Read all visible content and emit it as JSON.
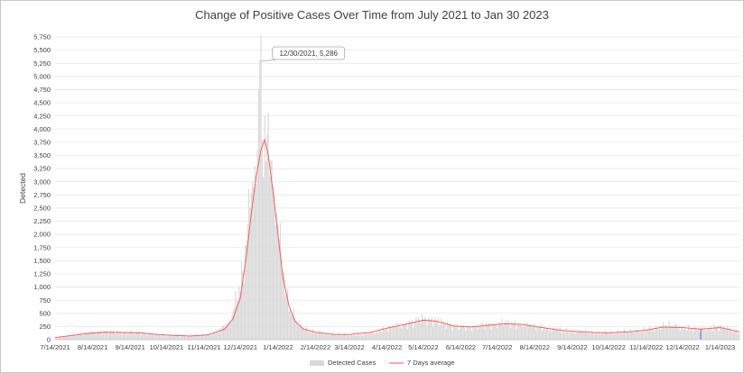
{
  "chart_data": {
    "type": "bar",
    "title": "Change of Positive Cases Over Time from July 2021 to Jan 30 2023",
    "xlabel": "",
    "ylabel": "Detected",
    "ylim": [
      0,
      5750
    ],
    "y_ticks": [
      0,
      250,
      500,
      750,
      1000,
      1250,
      1500,
      1750,
      2000,
      2250,
      2500,
      2750,
      3000,
      3250,
      3500,
      3750,
      4000,
      4250,
      4500,
      4750,
      5000,
      5250,
      5500,
      5750
    ],
    "y_tick_labels": [
      "0",
      "250",
      "500",
      "750",
      "1,000",
      "1,250",
      "1,500",
      "1,750",
      "2,000",
      "2,250",
      "2,500",
      "2,750",
      "3,000",
      "3,250",
      "3,500",
      "3,750",
      "4,000",
      "4,250",
      "4,500",
      "4,750",
      "5,000",
      "5,250",
      "5,500",
      "5,750"
    ],
    "x_range": [
      "2021-07-14",
      "2023-01-30"
    ],
    "x_ticks": [
      "7/14/2021",
      "8/14/2021",
      "9/14/2021",
      "10/14/2021",
      "11/14/2021",
      "12/14/2021",
      "1/14/2022",
      "2/14/2022",
      "3/14/2022",
      "4/14/2022",
      "5/14/2022",
      "6/14/2022",
      "7/14/2022",
      "8/14/2022",
      "9/14/2022",
      "10/14/2022",
      "11/14/2022",
      "12/14/2022",
      "1/14/2023"
    ],
    "grid": "horizontal",
    "legend_position": "bottom",
    "annotation": {
      "text": "12/30/2021, 5,286",
      "x": "2021-12-30",
      "y": 5286
    },
    "series": [
      {
        "name": "Detected Cases",
        "kind": "bar",
        "color": "#d9d9d9",
        "highlight_color": "#4472c4",
        "highlight_date": "2022-12-29",
        "points": [
          [
            "2021-07-14",
            30
          ],
          [
            "2021-07-21",
            55
          ],
          [
            "2021-07-28",
            85
          ],
          [
            "2021-08-04",
            110
          ],
          [
            "2021-08-11",
            130
          ],
          [
            "2021-08-18",
            150
          ],
          [
            "2021-08-25",
            155
          ],
          [
            "2021-09-01",
            150
          ],
          [
            "2021-09-08",
            140
          ],
          [
            "2021-09-15",
            150
          ],
          [
            "2021-09-22",
            135
          ],
          [
            "2021-09-29",
            120
          ],
          [
            "2021-10-06",
            100
          ],
          [
            "2021-10-13",
            90
          ],
          [
            "2021-10-20",
            80
          ],
          [
            "2021-10-27",
            75
          ],
          [
            "2021-11-03",
            70
          ],
          [
            "2021-11-10",
            80
          ],
          [
            "2021-11-17",
            100
          ],
          [
            "2021-11-24",
            150
          ],
          [
            "2021-12-01",
            250
          ],
          [
            "2021-12-05",
            350
          ],
          [
            "2021-12-09",
            600
          ],
          [
            "2021-12-13",
            1000
          ],
          [
            "2021-12-16",
            1300
          ],
          [
            "2021-12-19",
            1800
          ],
          [
            "2021-12-22",
            2500
          ],
          [
            "2021-12-24",
            3000
          ],
          [
            "2021-12-26",
            3300
          ],
          [
            "2021-12-28",
            3600
          ],
          [
            "2021-12-30",
            5286
          ],
          [
            "2022-01-01",
            3800
          ],
          [
            "2022-01-03",
            4250
          ],
          [
            "2022-01-05",
            3900
          ],
          [
            "2022-01-07",
            3100
          ],
          [
            "2022-01-09",
            3400
          ],
          [
            "2022-01-11",
            2800
          ],
          [
            "2022-01-13",
            2400
          ],
          [
            "2022-01-15",
            1900
          ],
          [
            "2022-01-18",
            1300
          ],
          [
            "2022-01-21",
            900
          ],
          [
            "2022-01-24",
            600
          ],
          [
            "2022-01-28",
            400
          ],
          [
            "2022-02-02",
            250
          ],
          [
            "2022-02-09",
            170
          ],
          [
            "2022-02-16",
            130
          ],
          [
            "2022-02-23",
            110
          ],
          [
            "2022-03-02",
            100
          ],
          [
            "2022-03-09",
            90
          ],
          [
            "2022-03-16",
            95
          ],
          [
            "2022-03-23",
            100
          ],
          [
            "2022-03-30",
            120
          ],
          [
            "2022-04-06",
            150
          ],
          [
            "2022-04-13",
            200
          ],
          [
            "2022-04-20",
            250
          ],
          [
            "2022-04-27",
            280
          ],
          [
            "2022-05-04",
            320
          ],
          [
            "2022-05-11",
            380
          ],
          [
            "2022-05-18",
            400
          ],
          [
            "2022-05-25",
            350
          ],
          [
            "2022-06-01",
            300
          ],
          [
            "2022-06-08",
            250
          ],
          [
            "2022-06-15",
            230
          ],
          [
            "2022-06-22",
            240
          ],
          [
            "2022-06-29",
            260
          ],
          [
            "2022-07-06",
            280
          ],
          [
            "2022-07-13",
            300
          ],
          [
            "2022-07-20",
            320
          ],
          [
            "2022-07-27",
            310
          ],
          [
            "2022-08-03",
            290
          ],
          [
            "2022-08-10",
            270
          ],
          [
            "2022-08-17",
            240
          ],
          [
            "2022-08-24",
            210
          ],
          [
            "2022-08-31",
            190
          ],
          [
            "2022-09-07",
            170
          ],
          [
            "2022-09-14",
            160
          ],
          [
            "2022-09-21",
            150
          ],
          [
            "2022-09-28",
            140
          ],
          [
            "2022-10-05",
            130
          ],
          [
            "2022-10-12",
            130
          ],
          [
            "2022-10-19",
            140
          ],
          [
            "2022-10-26",
            150
          ],
          [
            "2022-11-02",
            160
          ],
          [
            "2022-11-09",
            170
          ],
          [
            "2022-11-16",
            190
          ],
          [
            "2022-11-23",
            220
          ],
          [
            "2022-11-30",
            280
          ],
          [
            "2022-12-07",
            260
          ],
          [
            "2022-12-14",
            230
          ],
          [
            "2022-12-21",
            210
          ],
          [
            "2022-12-29",
            200
          ],
          [
            "2023-01-04",
            220
          ],
          [
            "2023-01-11",
            240
          ],
          [
            "2023-01-18",
            230
          ],
          [
            "2023-01-25",
            170
          ],
          [
            "2023-01-30",
            140
          ]
        ]
      },
      {
        "name": "7 Days average",
        "kind": "line",
        "color": "#ff5050",
        "points": [
          [
            "2021-07-14",
            40
          ],
          [
            "2021-07-28",
            80
          ],
          [
            "2021-08-11",
            120
          ],
          [
            "2021-08-25",
            140
          ],
          [
            "2021-09-08",
            135
          ],
          [
            "2021-09-22",
            130
          ],
          [
            "2021-10-06",
            100
          ],
          [
            "2021-10-20",
            80
          ],
          [
            "2021-11-03",
            70
          ],
          [
            "2021-11-17",
            90
          ],
          [
            "2021-12-01",
            200
          ],
          [
            "2021-12-08",
            400
          ],
          [
            "2021-12-14",
            800
          ],
          [
            "2021-12-19",
            1600
          ],
          [
            "2021-12-23",
            2400
          ],
          [
            "2021-12-27",
            3100
          ],
          [
            "2021-12-31",
            3600
          ],
          [
            "2022-01-03",
            3800
          ],
          [
            "2022-01-06",
            3500
          ],
          [
            "2022-01-10",
            2800
          ],
          [
            "2022-01-14",
            2000
          ],
          [
            "2022-01-18",
            1200
          ],
          [
            "2022-01-23",
            650
          ],
          [
            "2022-01-28",
            350
          ],
          [
            "2022-02-04",
            200
          ],
          [
            "2022-02-14",
            140
          ],
          [
            "2022-03-01",
            100
          ],
          [
            "2022-03-14",
            100
          ],
          [
            "2022-04-01",
            140
          ],
          [
            "2022-04-14",
            220
          ],
          [
            "2022-05-01",
            300
          ],
          [
            "2022-05-14",
            370
          ],
          [
            "2022-05-25",
            350
          ],
          [
            "2022-06-08",
            260
          ],
          [
            "2022-06-22",
            240
          ],
          [
            "2022-07-06",
            270
          ],
          [
            "2022-07-20",
            300
          ],
          [
            "2022-08-03",
            290
          ],
          [
            "2022-08-17",
            240
          ],
          [
            "2022-09-01",
            190
          ],
          [
            "2022-09-14",
            160
          ],
          [
            "2022-10-01",
            135
          ],
          [
            "2022-10-14",
            130
          ],
          [
            "2022-11-01",
            150
          ],
          [
            "2022-11-14",
            180
          ],
          [
            "2022-11-28",
            240
          ],
          [
            "2022-12-14",
            230
          ],
          [
            "2022-12-29",
            200
          ],
          [
            "2023-01-14",
            230
          ],
          [
            "2023-01-30",
            150
          ]
        ]
      }
    ]
  }
}
